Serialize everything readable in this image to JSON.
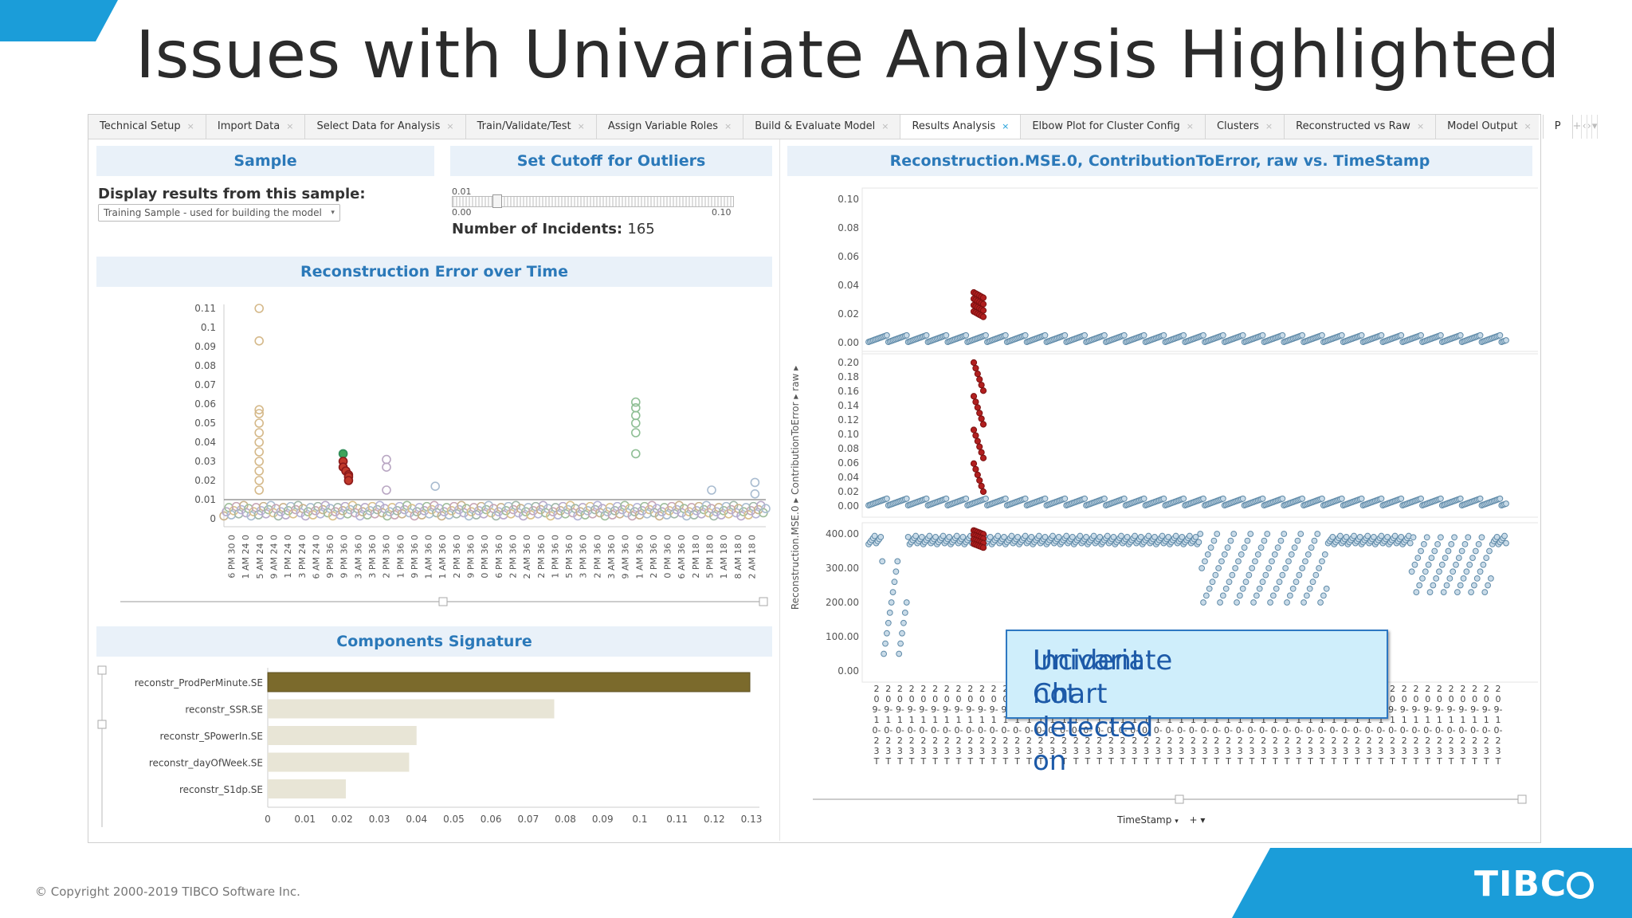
{
  "slide": {
    "title": "Issues with Univariate Analysis Highlighted",
    "copyright": "© Copyright 2000-2019 TIBCO Software Inc.",
    "brand": "TIBC",
    "accent_color": "#1b9dd9"
  },
  "tabs": [
    {
      "label": "Technical Setup"
    },
    {
      "label": "Import Data"
    },
    {
      "label": "Select Data for Analysis"
    },
    {
      "label": "Train/Validate/Test"
    },
    {
      "label": "Assign Variable Roles"
    },
    {
      "label": "Build & Evaluate Model"
    },
    {
      "label": "Results Analysis",
      "active": true
    },
    {
      "label": "Elbow Plot for Cluster Config"
    },
    {
      "label": "Clusters"
    },
    {
      "label": "Reconstructed vs Raw"
    },
    {
      "label": "Model Output"
    },
    {
      "label": "P"
    }
  ],
  "sample_panel": {
    "header": "Sample",
    "prompt": "Display results from this sample:",
    "selected": "Training Sample - used for building the model"
  },
  "cutoff_panel": {
    "header": "Set Cutoff for Outliers",
    "slider_value": "0.01",
    "slider_min": "0.00",
    "slider_max": "0.10",
    "incidents_label": "Number of Incidents:",
    "incidents_value": "165"
  },
  "recon_panel": {
    "header": "Reconstruction Error over Time"
  },
  "components_panel": {
    "header": "Components Signature"
  },
  "right_panel": {
    "header": "Reconstruction.MSE.0, ContributionToError, raw vs. TimeStamp",
    "left_axis_label": "Reconstruction.MSE.0  ▸  ContributionToError  ▸  raw  ▸",
    "xaxis_selector": "TimeStamp"
  },
  "callout": {
    "line1": "Incident not detected on",
    "line2": "Univariate Chart"
  },
  "chart_data": [
    {
      "type": "scatter",
      "title": "Reconstruction Error over Time",
      "ylim": [
        0,
        0.11
      ],
      "ytick_labels": [
        "0.11",
        "0.1",
        "0.09",
        "0.08",
        "0.07",
        "0.06",
        "0.05",
        "0.04",
        "0.03",
        "0.02",
        "0.01",
        "0"
      ],
      "xtick_labels": [
        "6 PM 30 0",
        "1 AM 24 0",
        "5 AM 24 0",
        "9 AM 24 0",
        "1 PM 24 0",
        "3 PM 24 0",
        "6 AM 24 0",
        "9 PM 36 0",
        "9 PM 36 0",
        "3 AM 36 0",
        "3 PM 36 0",
        "2 PM 36 0",
        "1 PM 36 0",
        "9 PM 36 0",
        "1 AM 36 0",
        "1 AM 36 0",
        "2 PM 36 0",
        "9 PM 36 0",
        "0 PM 36 0",
        "6 PM 36 0",
        "2 PM 36 0",
        "2 AM 36 0",
        "2 PM 36 0",
        "1 PM 36 0",
        "5 PM 36 0",
        "3 PM 36 0",
        "2 PM 36 0",
        "3 AM 36 0",
        "9 AM 36 0",
        "1 AM 36 0",
        "2 PM 36 0",
        "0 PM 36 0",
        "6 AM 36 0",
        "2 PM 18 0",
        "5 PM 18 0",
        "1 AM 18 0",
        "8 AM 18 0",
        "2 AM 18 0"
      ],
      "cutoff_line": 0.01,
      "series": [
        {
          "values_by_index": "baseline",
          "x": [
            0.02,
            0.04,
            0.06,
            0.08,
            0.1,
            0.12,
            0.14,
            0.16,
            0.18,
            0.2,
            0.22,
            0.24,
            0.26,
            0.28,
            0.3,
            0.32,
            0.34,
            0.36,
            0.38,
            0.4,
            0.42,
            0.44,
            0.46,
            0.48,
            0.5,
            0.52,
            0.54,
            0.56,
            0.58,
            0.6,
            0.62,
            0.64,
            0.66,
            0.68,
            0.7,
            0.72,
            0.74,
            0.76,
            0.78,
            0.8,
            0.82,
            0.84,
            0.86,
            0.88,
            0.9,
            0.92,
            0.94,
            0.96,
            0.98
          ],
          "y": [
            0.003,
            0.002,
            0.004,
            0.001,
            0.003,
            0.002,
            0.005,
            0.002,
            0.003,
            0.001,
            0.004,
            0.002,
            0.003,
            0.002,
            0.001,
            0.003,
            0.002,
            0.004,
            0.002,
            0.003,
            0.001,
            0.003,
            0.002,
            0.004,
            0.002,
            0.003,
            0.001,
            0.002,
            0.003,
            0.002,
            0.004,
            0.002,
            0.003,
            0.001,
            0.002,
            0.003,
            0.002,
            0.004,
            0.002,
            0.003,
            0.002,
            0.001,
            0.003,
            0.002,
            0.004,
            0.003,
            0.002,
            0.003,
            0.002
          ]
        },
        {
          "x": [
            0.065,
            0.065,
            0.065,
            0.065,
            0.065,
            0.065,
            0.065,
            0.065,
            0.065,
            0.065,
            0.065,
            0.065
          ],
          "y": [
            0.11,
            0.093,
            0.057,
            0.055,
            0.05,
            0.045,
            0.04,
            0.035,
            0.03,
            0.025,
            0.02,
            0.015
          ]
        },
        {
          "x": [
            0.22,
            0.22,
            0.22,
            0.225,
            0.23,
            0.23,
            0.23
          ],
          "y": [
            0.034,
            0.03,
            0.027,
            0.025,
            0.023,
            0.022,
            0.02
          ]
        },
        {
          "x": [
            0.3,
            0.3,
            0.3
          ],
          "y": [
            0.031,
            0.027,
            0.015
          ]
        },
        {
          "x": [
            0.76,
            0.76,
            0.76,
            0.76,
            0.76,
            0.76
          ],
          "y": [
            0.061,
            0.058,
            0.054,
            0.05,
            0.045,
            0.034
          ]
        },
        {
          "x": [
            0.39,
            0.9,
            0.98,
            0.98
          ],
          "y": [
            0.017,
            0.015,
            0.019,
            0.013
          ]
        }
      ]
    },
    {
      "type": "bar",
      "title": "Components Signature",
      "categories": [
        "reconstr_ProdPerMinute.SE",
        "reconstr_SSR.SE",
        "reconstr_SPowerIn.SE",
        "reconstr_dayOfWeek.SE",
        "reconstr_S1dp.SE"
      ],
      "values": [
        0.131,
        0.077,
        0.04,
        0.038,
        0.021
      ],
      "xlim": [
        0,
        0.13
      ],
      "xtick_labels": [
        "0",
        "0.01",
        "0.02",
        "0.03",
        "0.04",
        "0.05",
        "0.06",
        "0.07",
        "0.08",
        "0.09",
        "0.1",
        "0.11",
        "0.12",
        "0.13"
      ],
      "colors": [
        "#7b6a2c",
        "#e8e5d6",
        "#e8e5d6",
        "#e8e5d6",
        "#e8e5d6"
      ]
    },
    {
      "type": "scatter",
      "title": "Reconstruction.MSE.0",
      "ylim": [
        0,
        0.1
      ],
      "ytick_labels": [
        "0.10",
        "0.08",
        "0.06",
        "0.04",
        "0.02",
        "0.00"
      ],
      "ylabel": "Reconstruction.MSE.0"
    },
    {
      "type": "scatter",
      "title": "ContributionToError",
      "ylim": [
        0,
        0.2
      ],
      "ytick_labels": [
        "0.20",
        "0.18",
        "0.16",
        "0.14",
        "0.12",
        "0.10",
        "0.08",
        "0.06",
        "0.04",
        "0.02",
        "0.00"
      ],
      "ylabel": "ContributionToError"
    },
    {
      "type": "scatter",
      "title": "raw",
      "ylim": [
        0,
        400
      ],
      "ytick_labels": [
        "400.00",
        "300.00",
        "200.00",
        "100.00",
        "0.00"
      ],
      "ylabel": "raw"
    }
  ],
  "colors": {
    "normal_point": "#7fa8c4",
    "incident_point": "#b11f1f",
    "panel_header_bg": "#e9f1f9",
    "panel_header_text": "#2b79b9"
  }
}
